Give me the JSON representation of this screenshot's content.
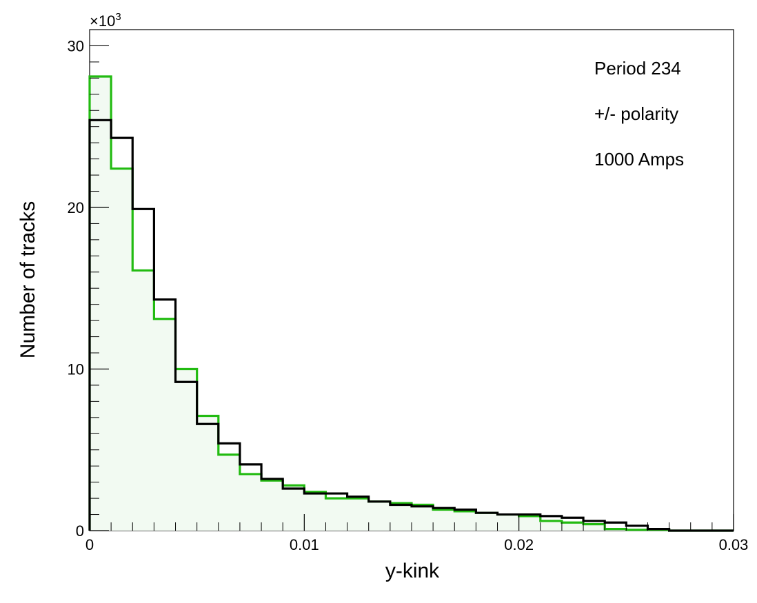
{
  "chart_data": {
    "type": "histogram",
    "title": "",
    "xlabel": "y-kink",
    "ylabel": "Number of tracks",
    "y_exponent_label": "×10",
    "y_exponent_power": "3",
    "xlim": [
      0,
      0.03
    ],
    "ylim": [
      0,
      31000
    ],
    "grid": false,
    "x_ticks": [
      {
        "value": 0,
        "label": "0"
      },
      {
        "value": 0.01,
        "label": "0.01"
      },
      {
        "value": 0.02,
        "label": "0.02"
      },
      {
        "value": 0.03,
        "label": "0.03"
      }
    ],
    "y_ticks": [
      {
        "value": 0,
        "label": "0"
      },
      {
        "value": 10000,
        "label": "10"
      },
      {
        "value": 20000,
        "label": "20"
      },
      {
        "value": 30000,
        "label": "30"
      }
    ],
    "annotations": [
      "Period 234",
      "+/- polarity",
      "1000 Amps"
    ],
    "bin_edges": [
      0,
      0.001,
      0.002,
      0.003,
      0.004,
      0.005,
      0.006,
      0.007,
      0.008,
      0.009,
      0.01,
      0.011,
      0.012,
      0.013,
      0.014,
      0.015,
      0.016,
      0.017,
      0.018,
      0.019,
      0.02,
      0.021,
      0.022,
      0.023,
      0.024,
      0.025,
      0.026,
      0.027,
      0.028,
      0.029,
      0.03
    ],
    "series": [
      {
        "color": "#22bb11",
        "fill": "#f2faf2",
        "values": [
          28100,
          22400,
          16100,
          13100,
          10000,
          7100,
          4700,
          3500,
          3100,
          2800,
          2400,
          2000,
          2000,
          1800,
          1700,
          1600,
          1300,
          1200,
          1100,
          1000,
          900,
          600,
          500,
          400,
          100,
          50,
          50,
          0,
          0,
          0
        ]
      },
      {
        "color": "#000000",
        "fill": "none",
        "values": [
          25400,
          24300,
          19900,
          14300,
          9200,
          6600,
          5400,
          4100,
          3200,
          2600,
          2300,
          2300,
          2100,
          1800,
          1600,
          1500,
          1400,
          1300,
          1100,
          1000,
          1000,
          900,
          800,
          600,
          500,
          300,
          100,
          0,
          0,
          0
        ]
      }
    ]
  }
}
